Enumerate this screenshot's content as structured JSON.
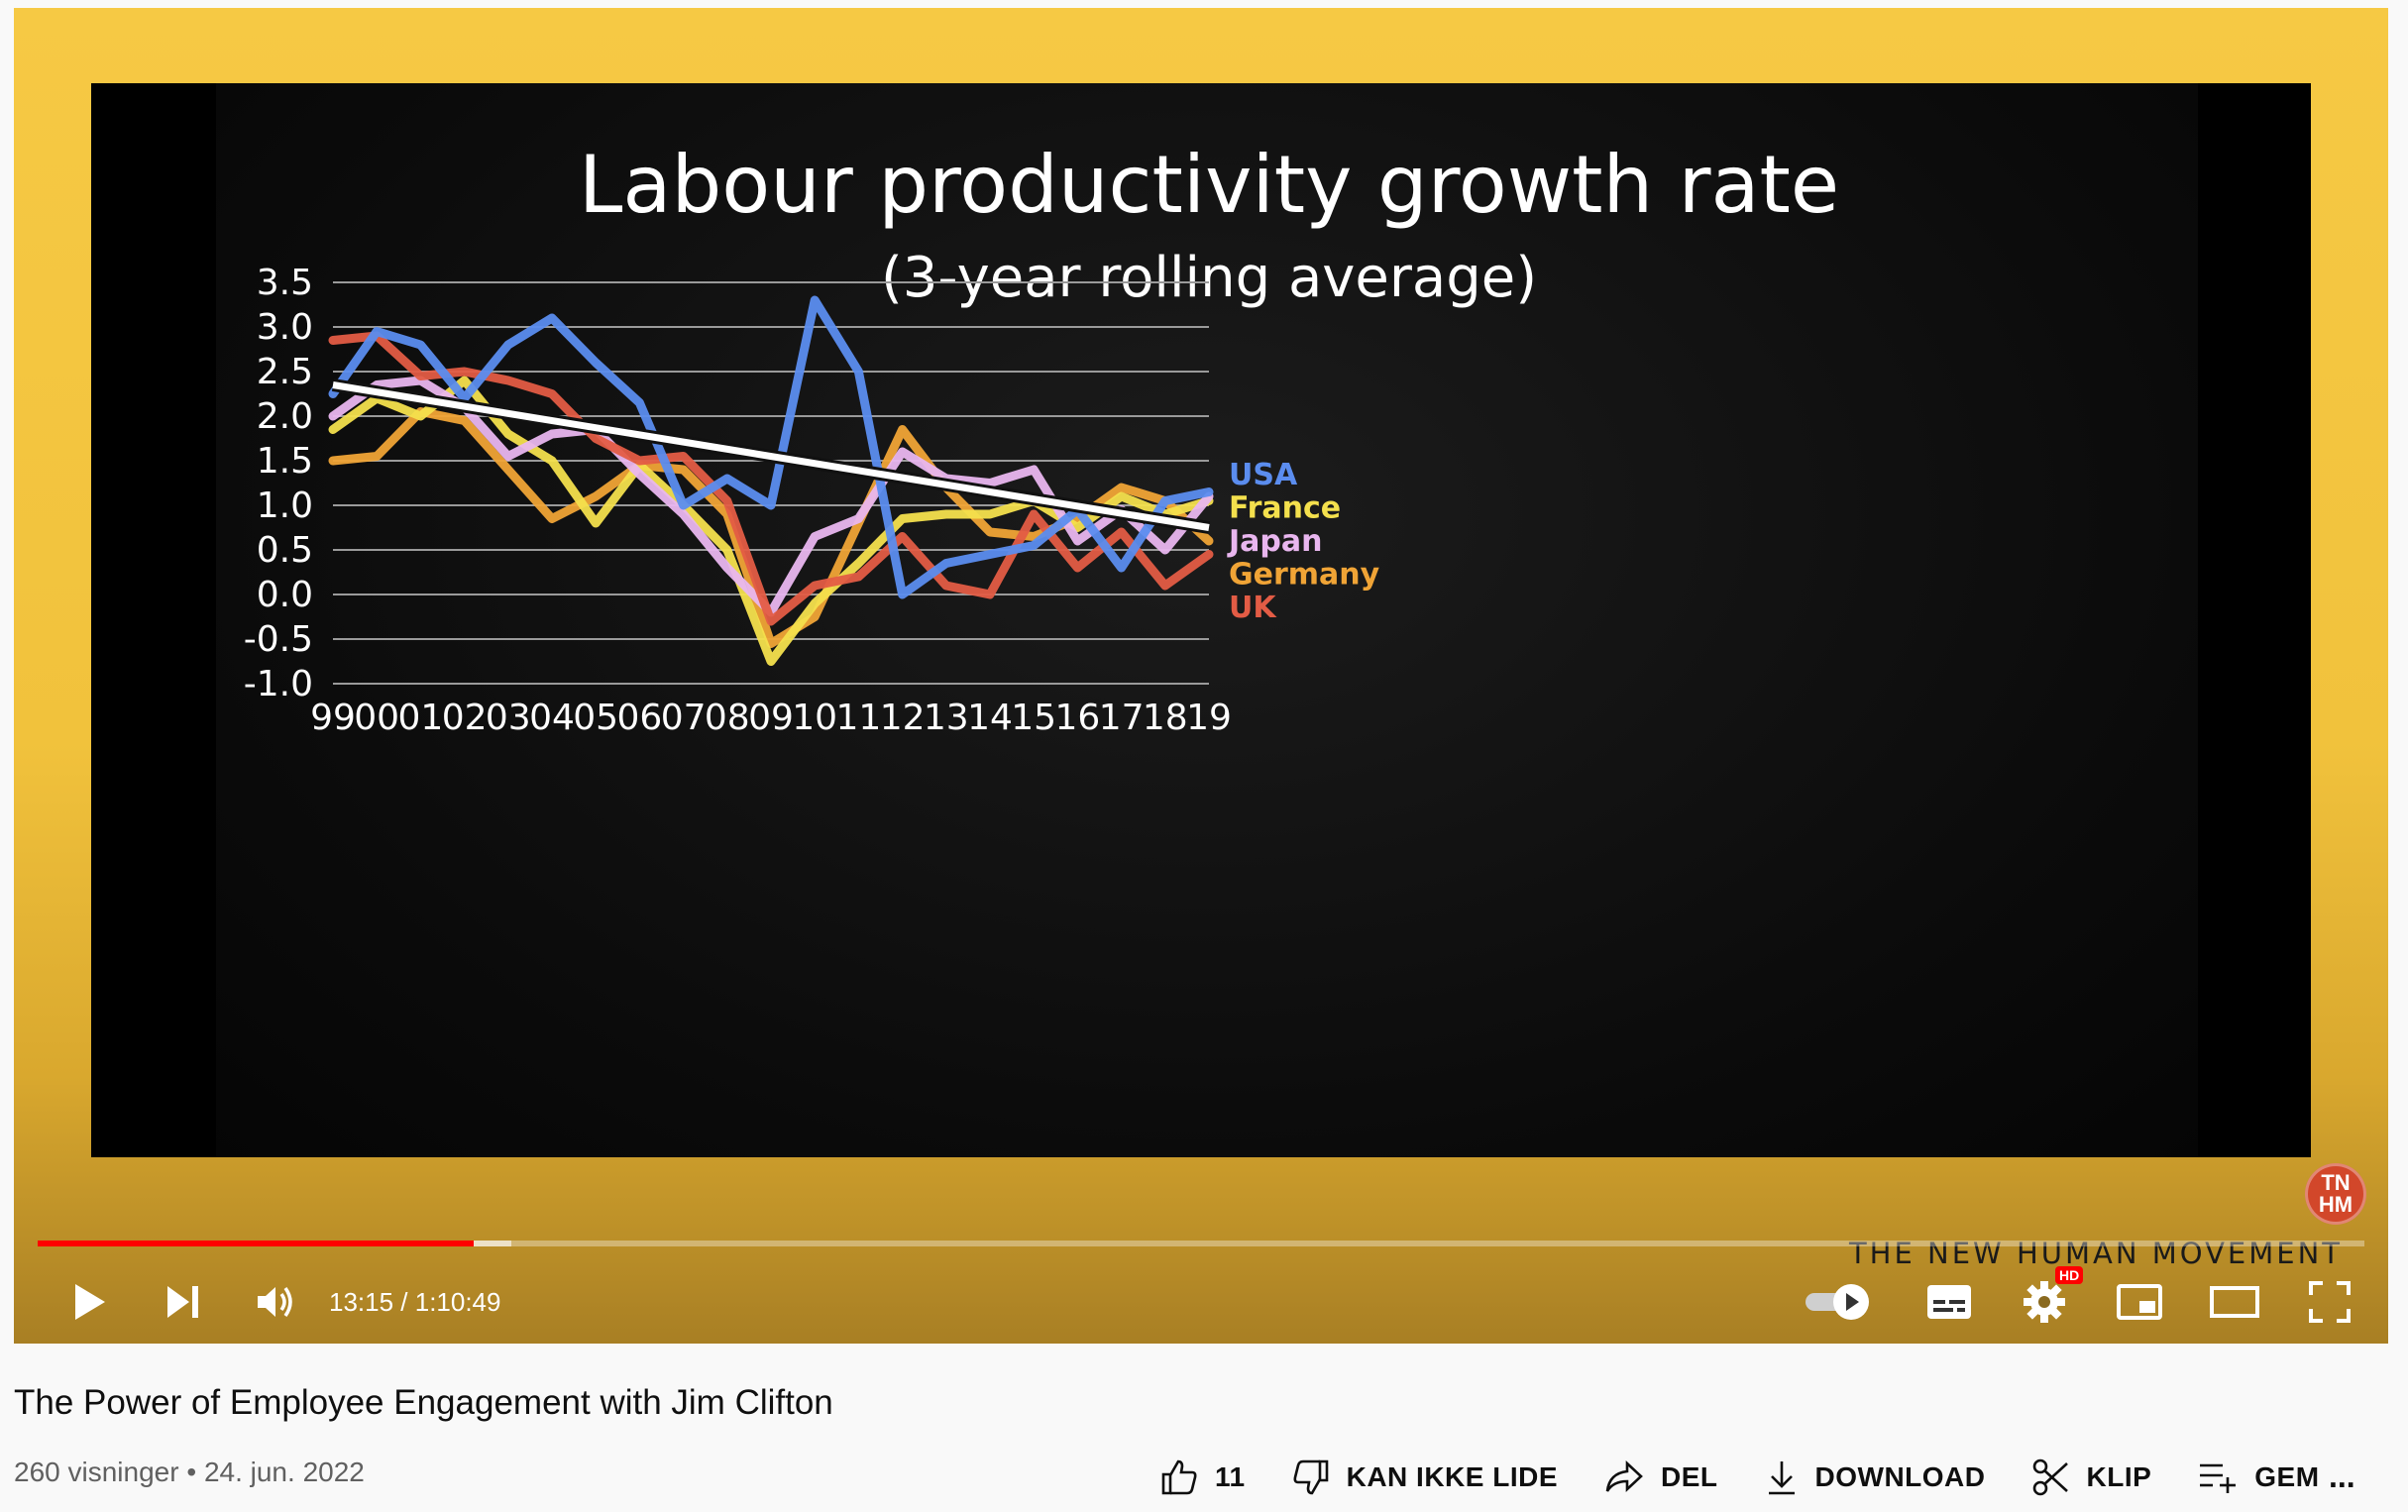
{
  "video": {
    "title": "The Power of Employee Engagement with Jim Clifton",
    "views": "260 visninger",
    "separator": "•",
    "date": "24. jun. 2022",
    "time_display": "13:15 / 1:10:49",
    "progress_fraction": 0.1874,
    "buffered_fraction": 0.2036
  },
  "brand": {
    "logo_text": "TN HM",
    "name": "THE NEW HUMAN MOVEMENT",
    "logo_color": "#d2472a"
  },
  "actions": {
    "like_count": "11",
    "dislike_label": "KAN IKKE LIDE",
    "share_label": "DEL",
    "download_label": "DOWNLOAD",
    "clip_label": "KLIP",
    "save_label": "GEM",
    "more_label": "..."
  },
  "controls": {
    "hd_badge": "HD"
  },
  "chart_data": {
    "type": "line",
    "title": "Labour productivity growth rate",
    "subtitle": "(3-year rolling average)",
    "x": [
      "99",
      "00",
      "01",
      "02",
      "03",
      "04",
      "05",
      "06",
      "07",
      "08",
      "09",
      "10",
      "11",
      "12",
      "13",
      "14",
      "15",
      "16",
      "17",
      "18",
      "19"
    ],
    "ylim": [
      -1.0,
      3.5
    ],
    "yticks": [
      "3.5",
      "3.0",
      "2.5",
      "2.0",
      "1.5",
      "1.0",
      "0.5",
      "0.0",
      "-0.5",
      "-1.0"
    ],
    "grid": true,
    "legend_position": "right",
    "series": [
      {
        "name": "USA",
        "color": "#5b8def",
        "values": [
          2.25,
          2.95,
          2.8,
          2.2,
          2.8,
          3.1,
          2.6,
          2.15,
          1.0,
          1.3,
          1.0,
          3.3,
          2.5,
          0.0,
          0.35,
          0.45,
          0.55,
          0.95,
          0.3,
          1.05,
          1.15
        ]
      },
      {
        "name": "France",
        "color": "#f4e04d",
        "values": [
          1.85,
          2.2,
          2.0,
          2.4,
          1.8,
          1.5,
          0.8,
          1.45,
          1.0,
          0.5,
          -0.75,
          -0.1,
          0.35,
          0.85,
          0.9,
          0.9,
          1.05,
          0.75,
          1.1,
          0.9,
          1.05
        ]
      },
      {
        "name": "Japan",
        "color": "#e9b6ef",
        "values": [
          2.0,
          2.35,
          2.4,
          2.1,
          1.55,
          1.8,
          1.85,
          1.35,
          0.9,
          0.3,
          -0.2,
          0.65,
          0.85,
          1.6,
          1.3,
          1.25,
          1.4,
          0.6,
          0.95,
          0.5,
          1.1
        ]
      },
      {
        "name": "Germany",
        "color": "#f0a436",
        "values": [
          1.5,
          1.55,
          2.05,
          1.95,
          1.4,
          0.85,
          1.1,
          1.45,
          1.4,
          0.9,
          -0.55,
          -0.25,
          0.8,
          1.85,
          1.2,
          0.7,
          0.65,
          0.85,
          1.2,
          1.05,
          0.6
        ]
      },
      {
        "name": "UK",
        "color": "#e35c45",
        "values": [
          2.85,
          2.9,
          2.45,
          2.5,
          2.4,
          2.25,
          1.75,
          1.5,
          1.55,
          1.05,
          -0.3,
          0.1,
          0.2,
          0.65,
          0.1,
          0.0,
          0.9,
          0.3,
          0.7,
          0.1,
          0.45
        ]
      }
    ],
    "trendline": {
      "color": "#ffffff",
      "start": [
        0,
        2.35
      ],
      "end": [
        20,
        0.75
      ]
    }
  }
}
